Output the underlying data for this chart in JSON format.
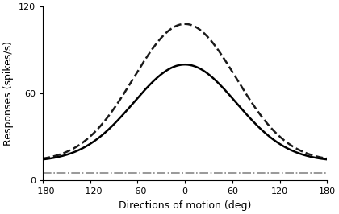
{
  "x_min": -180,
  "x_max": 180,
  "y_min": 0,
  "y_max": 120,
  "x_ticks": [
    -180,
    -120,
    -60,
    0,
    60,
    120,
    180
  ],
  "y_ticks": [
    0,
    60,
    120
  ],
  "xlabel": "Directions of motion (deg)",
  "ylabel": "Responses (spikes/s)",
  "solid_baseline": 13,
  "solid_peak": 80,
  "solid_sigma": 65,
  "dashed_baseline": 13,
  "dashed_peak": 108,
  "dashed_sigma": 65,
  "dashdot_level": 5,
  "solid_color": "#000000",
  "dashed_color": "#1a1a1a",
  "dashdot_color": "#888888",
  "bg_color": "#ffffff",
  "linewidth_solid": 1.8,
  "linewidth_dashed": 1.8,
  "linewidth_dashdot": 1.2,
  "xlabel_fontsize": 9,
  "ylabel_fontsize": 9,
  "tick_fontsize": 8
}
